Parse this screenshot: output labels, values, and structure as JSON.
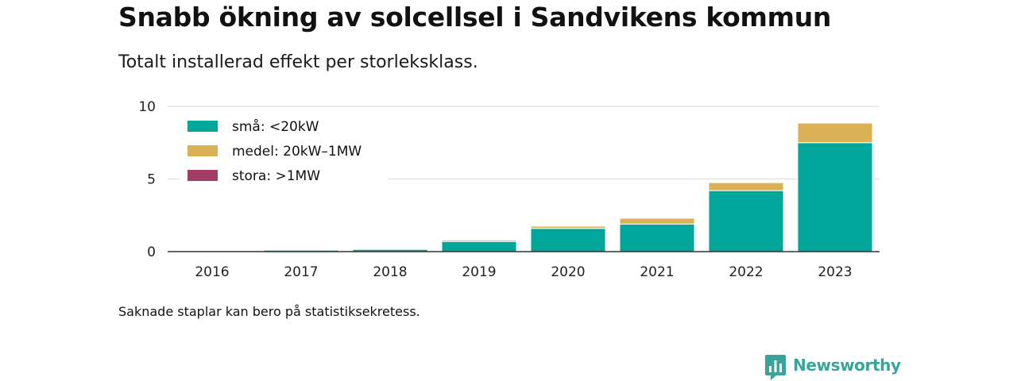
{
  "chart_data": {
    "type": "bar",
    "stacked": true,
    "title": "Snabb ökning av solcellsel i Sandvikens kommun",
    "subtitle": "Totalt installerad effekt per storleksklass.",
    "categories": [
      "2016",
      "2017",
      "2018",
      "2019",
      "2020",
      "2021",
      "2022",
      "2023"
    ],
    "series": [
      {
        "name": "små: <20kW",
        "color": "#00a69a",
        "values": [
          0.05,
          0.1,
          0.15,
          0.7,
          1.6,
          1.9,
          4.2,
          7.5
        ]
      },
      {
        "name": "medel: 20kW–1MW",
        "color": "#dbb156",
        "values": [
          0,
          0,
          0,
          0.1,
          0.15,
          0.4,
          0.55,
          1.35
        ]
      },
      {
        "name": "stora: >1MW",
        "color": "#a13d65",
        "values": [
          0,
          0,
          0,
          0,
          0,
          0,
          0,
          0
        ]
      }
    ],
    "ylim": [
      0,
      10
    ],
    "yticks": [
      0,
      5,
      10
    ],
    "grid": true,
    "legend_position": "top-left",
    "xlabel": "",
    "ylabel": ""
  },
  "footnote": "Saknade staplar kan bero på statistiksekretess.",
  "brand": {
    "name": "Newsworthy",
    "color": "#3aa39a",
    "icon": "newsworthy-logo-icon"
  }
}
